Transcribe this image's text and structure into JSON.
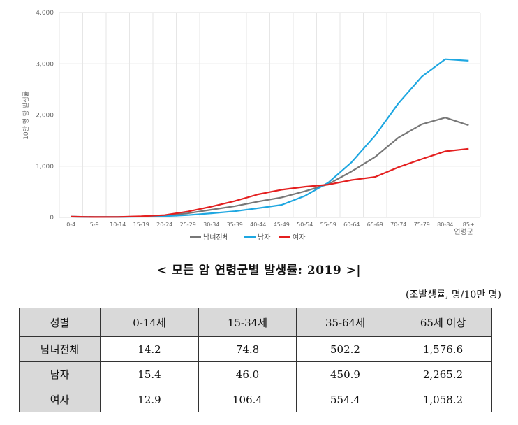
{
  "chart_data": {
    "type": "line",
    "categories": [
      "0-4",
      "5-9",
      "10-14",
      "15-19",
      "20-24",
      "25-29",
      "30-34",
      "35-39",
      "40-44",
      "45-49",
      "50-54",
      "55-59",
      "60-64",
      "65-69",
      "70-74",
      "75-79",
      "80-84",
      "85+"
    ],
    "ylabel": "10만 명 당 발생률",
    "xlabel": "연령군",
    "ylim": [
      0,
      4000
    ],
    "yticks": [
      "0",
      "1,000",
      "2,000",
      "3,000",
      "4,000"
    ],
    "grid": true,
    "legend_position": "bottom",
    "series": [
      {
        "name": "남녀전체",
        "color": "#777777",
        "values": [
          15,
          8,
          10,
          18,
          35,
          80,
          150,
          220,
          310,
          390,
          510,
          650,
          900,
          1180,
          1560,
          1820,
          1950,
          1800
        ]
      },
      {
        "name": "남자",
        "color": "#1ea7e1",
        "values": [
          15,
          8,
          10,
          15,
          25,
          45,
          80,
          120,
          180,
          245,
          420,
          680,
          1080,
          1600,
          2230,
          2750,
          3090,
          3060
        ]
      },
      {
        "name": "여자",
        "color": "#e41f1f",
        "values": [
          15,
          8,
          10,
          22,
          45,
          115,
          210,
          320,
          450,
          540,
          600,
          640,
          730,
          790,
          980,
          1140,
          1290,
          1340
        ]
      }
    ]
  },
  "caption": "< 모든 암 연령군별 발생률: 2019 >|",
  "unit_note": "(조발생률, 명/10만 명)",
  "table": {
    "headers": [
      "성별",
      "0-14세",
      "15-34세",
      "35-64세",
      "65세 이상"
    ],
    "rows": [
      [
        "남녀전체",
        "14.2",
        "74.8",
        "502.2",
        "1,576.6"
      ],
      [
        "남자",
        "15.4",
        "46.0",
        "450.9",
        "2,265.2"
      ],
      [
        "여자",
        "12.9",
        "106.4",
        "554.4",
        "1,058.2"
      ]
    ]
  }
}
